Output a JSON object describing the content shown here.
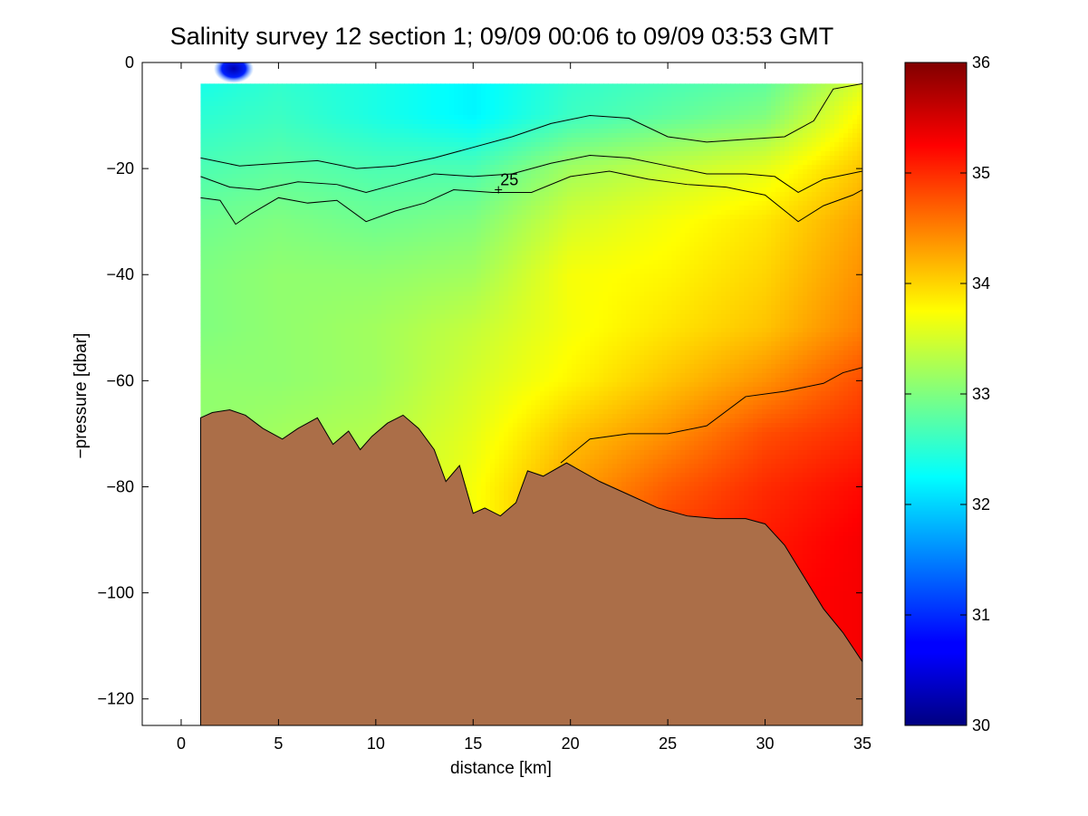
{
  "chart_data": {
    "type": "heatmap",
    "title": "Salinity survey 12 section 1; 09/09 00:06 to 09/09 03:53 GMT",
    "xlabel": "distance [km]",
    "ylabel": "−pressure [dbar]",
    "xlim": [
      -2,
      35
    ],
    "ylim": [
      -125,
      0
    ],
    "xticks": [
      0,
      5,
      10,
      15,
      20,
      25,
      30,
      35
    ],
    "xtick_labels": [
      "0",
      "5",
      "10",
      "15",
      "20",
      "25",
      "30",
      "35"
    ],
    "yticks": [
      0,
      -20,
      -40,
      -60,
      -80,
      -100,
      -120
    ],
    "ytick_labels": [
      "0",
      "−20",
      "−40",
      "−60",
      "−80",
      "−100",
      "−120"
    ],
    "colormap": "jet",
    "clim": [
      30,
      36
    ],
    "colorbar_ticks": [
      30,
      31,
      32,
      33,
      34,
      35,
      36
    ],
    "colorbar_tick_labels": [
      "30",
      "31",
      "32",
      "33",
      "34",
      "35",
      "36"
    ],
    "colorbar_location": "right",
    "grid": false,
    "seafloor_color": "#ab6e48",
    "data_extent_x": [
      1,
      35
    ],
    "surface_gap_dbar": [
      0,
      -4
    ],
    "seafloor_depth": {
      "x": [
        1,
        1.6,
        2.5,
        3.3,
        4.2,
        5.2,
        6.0,
        7.0,
        7.8,
        8.6,
        9.2,
        9.8,
        10.6,
        11.4,
        12.2,
        13.0,
        13.6,
        14.3,
        15.0,
        15.6,
        16.4,
        17.2,
        17.8,
        18.6,
        19.8,
        21.5,
        23.0,
        24.5,
        26.0,
        27.5,
        29.0,
        30.0,
        31.0,
        32.0,
        33.0,
        34.0,
        35.0
      ],
      "y": [
        -67,
        -66,
        -65.5,
        -66.5,
        -69,
        -71,
        -69,
        -67,
        -72,
        -69.5,
        -73,
        -70.5,
        -68,
        -66.5,
        -69,
        -73,
        -79,
        -76,
        -85,
        -84,
        -85.5,
        -83,
        -77,
        -78,
        -75.5,
        -79,
        -81.5,
        -84,
        -85.5,
        -86,
        -86,
        -87,
        -91,
        -97,
        -103,
        -107.5,
        -113
      ]
    },
    "salinity_field": {
      "x": [
        1,
        5,
        10,
        15,
        20,
        25,
        30,
        35
      ],
      "depths": [
        0,
        -10,
        -20,
        -30,
        -40,
        -50,
        -60,
        -70,
        -80,
        -90,
        -100,
        -110
      ],
      "values": [
        [
          32.3,
          32.5,
          32.4,
          32.2,
          32.5,
          32.6,
          32.7,
          33.4
        ],
        [
          32.5,
          32.6,
          32.4,
          32.2,
          32.6,
          32.8,
          33.0,
          33.8
        ],
        [
          32.7,
          32.8,
          32.7,
          32.7,
          33.2,
          33.4,
          33.6,
          34.1
        ],
        [
          32.9,
          33.0,
          32.9,
          33.0,
          33.5,
          33.7,
          33.9,
          34.3
        ],
        [
          33.0,
          33.1,
          33.1,
          33.2,
          33.7,
          33.8,
          34.0,
          34.4
        ],
        [
          33.0,
          33.1,
          33.2,
          33.4,
          33.7,
          33.9,
          34.1,
          34.5
        ],
        [
          33.1,
          33.1,
          33.2,
          33.5,
          33.8,
          34.1,
          34.4,
          34.8
        ],
        [
          33.1,
          33.2,
          33.3,
          33.6,
          34.1,
          34.4,
          34.8,
          35.0
        ],
        [
          33.1,
          33.2,
          33.3,
          33.7,
          34.3,
          34.7,
          35.0,
          35.2
        ],
        [
          33.1,
          33.2,
          33.3,
          33.7,
          34.4,
          34.9,
          35.1,
          35.3
        ],
        [
          33.1,
          33.2,
          33.3,
          33.7,
          34.4,
          34.9,
          35.2,
          35.3
        ],
        [
          33.1,
          33.2,
          33.3,
          33.7,
          34.4,
          34.9,
          35.2,
          35.3
        ]
      ]
    },
    "low_salinity_patch": {
      "x": 2.7,
      "y": -1.5,
      "value": 30.3
    },
    "contours": [
      {
        "x": [
          1,
          3,
          5,
          7,
          9,
          11,
          13,
          15,
          17,
          19,
          21,
          23,
          25,
          27,
          29,
          31,
          32.5,
          33.5,
          35
        ],
        "y": [
          -18,
          -19.5,
          -19,
          -18.5,
          -20,
          -19.5,
          -18,
          -16,
          -14,
          -11.5,
          -10,
          -10.5,
          -14,
          -15,
          -14.5,
          -14,
          -11,
          -5,
          -4
        ]
      },
      {
        "x": [
          1,
          2.5,
          4,
          6,
          8,
          9.5,
          11,
          13,
          15,
          17,
          19,
          21,
          23,
          25,
          27,
          29,
          30.5,
          31.7,
          33,
          35
        ],
        "y": [
          -21.5,
          -23.5,
          -24,
          -22.5,
          -23,
          -24.5,
          -23,
          -21,
          -21.5,
          -21,
          -19,
          -17.5,
          -18,
          -19.5,
          -21,
          -21,
          -21.5,
          -24.5,
          -22,
          -20.5
        ]
      },
      {
        "x": [
          1,
          2,
          2.8,
          3.6,
          5,
          6.5,
          8,
          9.5,
          11,
          12.5,
          14,
          16,
          18,
          20,
          22,
          24,
          26,
          28,
          30,
          31.7,
          33,
          34.5,
          35
        ],
        "y": [
          -25.5,
          -26,
          -30.5,
          -28.5,
          -25.5,
          -26.5,
          -26,
          -30,
          -28,
          -26.5,
          -24,
          -24.5,
          -24.5,
          -21.5,
          -20.5,
          -22,
          -23,
          -23.5,
          -25,
          -30,
          -27,
          -25,
          -24
        ]
      },
      {
        "x": [
          19.5,
          21,
          23,
          25,
          27,
          29,
          31,
          33,
          34,
          35
        ],
        "y": [
          -75.5,
          -71,
          -70,
          -70,
          -68.5,
          -63,
          -62,
          -60.5,
          -58.5,
          -57.5
        ]
      }
    ],
    "annotations": [
      {
        "text": "25",
        "x": 16.3,
        "y": -24
      }
    ]
  }
}
